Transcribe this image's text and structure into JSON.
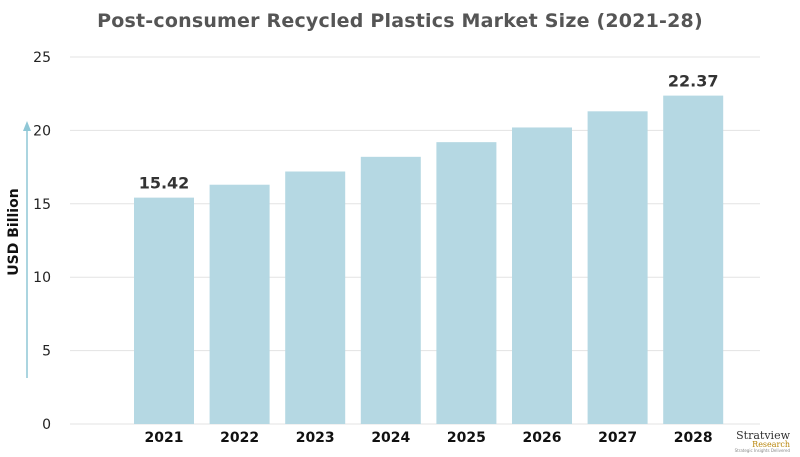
{
  "chart_data": {
    "type": "bar",
    "title": "Post-consumer Recycled Plastics Market Size (2021-28)",
    "ylabel": "USD Billion",
    "xlabel": "",
    "categories": [
      "2021",
      "2022",
      "2023",
      "2024",
      "2025",
      "2026",
      "2027",
      "2028"
    ],
    "values": [
      15.42,
      16.3,
      17.2,
      18.2,
      19.2,
      20.2,
      21.3,
      22.37
    ],
    "data_labels": {
      "2021": "15.42",
      "2028": "22.37"
    },
    "ylim": [
      0,
      25
    ],
    "yticks": [
      0,
      5,
      10,
      15,
      20,
      25
    ],
    "grid": true,
    "bar_color": "#b5d8e3",
    "axis_arrow_color": "#8fc7d6"
  },
  "logo": {
    "name": "Stratview",
    "sub": "Research",
    "tagline": "Strategic Insights Delivered"
  }
}
